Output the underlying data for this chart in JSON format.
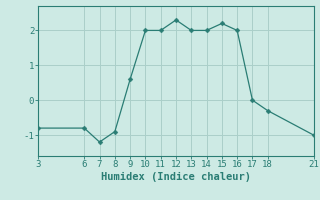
{
  "x": [
    3,
    6,
    7,
    8,
    9,
    10,
    11,
    12,
    13,
    14,
    15,
    16,
    17,
    18,
    21
  ],
  "y": [
    -0.8,
    -0.8,
    -1.2,
    -0.9,
    0.6,
    2.0,
    2.0,
    2.3,
    2.0,
    2.0,
    2.2,
    2.0,
    0.0,
    -0.3,
    -1.0
  ],
  "line_color": "#2a7d74",
  "marker": "D",
  "marker_size": 2.5,
  "bg_color": "#cdeae4",
  "grid_color": "#aacfc9",
  "xlabel": "Humidex (Indice chaleur)",
  "xlim": [
    3,
    21
  ],
  "ylim": [
    -1.6,
    2.7
  ],
  "xticks": [
    3,
    6,
    7,
    8,
    9,
    10,
    11,
    12,
    13,
    14,
    15,
    16,
    17,
    18,
    21
  ],
  "yticks": [
    -1,
    0,
    1,
    2
  ],
  "tick_color": "#2a7d74",
  "axis_color": "#2a7d74",
  "font_size": 6.5,
  "xlabel_font_size": 7.5
}
